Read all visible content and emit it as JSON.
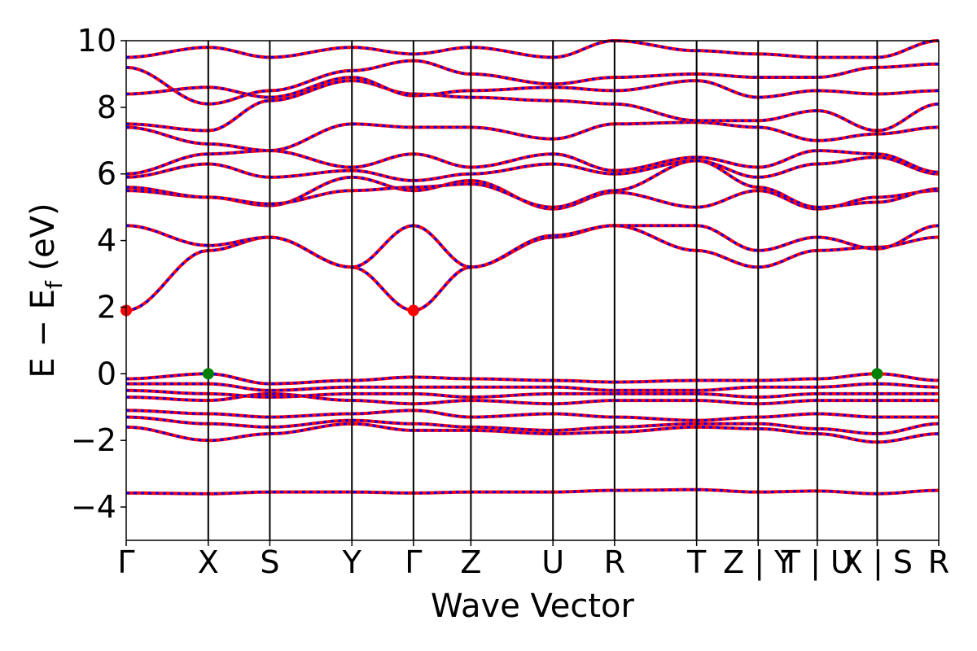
{
  "chart_data": {
    "type": "line",
    "xlabel": "Wave Vector",
    "ylabel": "E − E",
    "ylabel_subscript": "f",
    "ylabel_unit": "(eV)",
    "ylim": [
      -5,
      10
    ],
    "yticks": [
      "−4",
      "−2",
      "0",
      "2",
      "4",
      "6",
      "8",
      "10"
    ],
    "ytick_values": [
      -4,
      -2,
      0,
      2,
      4,
      6,
      8,
      10
    ],
    "kpath": [
      {
        "label": "Γ",
        "k": 0.0
      },
      {
        "label": "X",
        "k": 1.0
      },
      {
        "label": "S",
        "k": 1.75
      },
      {
        "label": "Y",
        "k": 2.75
      },
      {
        "label": "Γ",
        "k": 3.5
      },
      {
        "label": "Z",
        "k": 4.2
      },
      {
        "label": "U",
        "k": 5.2
      },
      {
        "label": "R",
        "k": 5.95
      },
      {
        "label": "T",
        "k": 6.95
      },
      {
        "label": "Z | Y",
        "k": 7.7
      },
      {
        "label": "T | U",
        "k": 8.42
      },
      {
        "label": "X | S",
        "k": 9.15
      },
      {
        "label": "R",
        "k": 9.9
      }
    ],
    "grid": false,
    "colors": {
      "spin_up": "#ff0000",
      "spin_down": "#0000ff",
      "cbm": "#ff0000",
      "vbm": "#008000"
    },
    "series": [
      {
        "values": [
          -3.58,
          -3.6,
          -3.55,
          -3.55,
          -3.58,
          -3.55,
          -3.55,
          -3.5,
          -3.48,
          -3.55,
          -3.52,
          -3.6,
          -3.5
        ]
      },
      {
        "values": [
          -1.6,
          -2.0,
          -1.8,
          -1.5,
          -1.7,
          -1.7,
          -1.8,
          -1.75,
          -1.6,
          -1.65,
          -1.8,
          -2.05,
          -1.8
        ]
      },
      {
        "values": [
          -1.3,
          -1.5,
          -1.6,
          -1.4,
          -1.5,
          -1.6,
          -1.7,
          -1.6,
          -1.5,
          -1.5,
          -1.65,
          -1.8,
          -1.5
        ]
      },
      {
        "values": [
          -1.1,
          -1.2,
          -1.3,
          -1.2,
          -1.1,
          -1.3,
          -1.2,
          -1.3,
          -1.4,
          -1.3,
          -1.2,
          -1.3,
          -1.3
        ]
      },
      {
        "values": [
          -0.7,
          -0.8,
          -0.6,
          -0.8,
          -0.9,
          -0.8,
          -0.9,
          -0.8,
          -0.8,
          -0.9,
          -0.8,
          -0.8,
          -0.8
        ]
      },
      {
        "values": [
          -0.5,
          -0.6,
          -0.7,
          -0.6,
          -0.6,
          -0.7,
          -0.6,
          -0.6,
          -0.6,
          -0.7,
          -0.6,
          -0.6,
          -0.6
        ]
      },
      {
        "values": [
          -0.3,
          -0.3,
          -0.5,
          -0.4,
          -0.4,
          -0.4,
          -0.4,
          -0.5,
          -0.5,
          -0.4,
          -0.4,
          -0.3,
          -0.4
        ]
      },
      {
        "values": [
          -0.15,
          0.0,
          -0.3,
          -0.2,
          -0.1,
          -0.15,
          -0.2,
          -0.25,
          -0.2,
          -0.2,
          -0.15,
          0.0,
          -0.2
        ]
      },
      {
        "values": [
          1.9,
          3.7,
          4.1,
          3.2,
          1.9,
          3.2,
          4.1,
          4.45,
          3.7,
          3.2,
          3.7,
          3.8,
          4.1
        ]
      },
      {
        "values": [
          4.45,
          3.85,
          4.1,
          3.2,
          4.45,
          3.2,
          4.15,
          4.45,
          4.45,
          3.7,
          4.1,
          3.75,
          4.45
        ]
      },
      {
        "values": [
          5.5,
          5.3,
          5.05,
          5.9,
          5.5,
          5.8,
          4.95,
          5.45,
          5.0,
          5.5,
          4.95,
          5.3,
          5.5
        ]
      },
      {
        "values": [
          5.6,
          5.3,
          5.1,
          5.5,
          5.6,
          5.7,
          5.0,
          5.5,
          6.4,
          5.6,
          5.0,
          5.15,
          5.55
        ]
      },
      {
        "values": [
          5.9,
          6.3,
          5.9,
          6.1,
          5.8,
          6.0,
          6.3,
          6.0,
          6.4,
          5.9,
          6.3,
          6.5,
          6.0
        ]
      },
      {
        "values": [
          6.0,
          6.6,
          6.7,
          6.2,
          6.6,
          6.2,
          6.6,
          6.1,
          6.5,
          6.2,
          6.7,
          6.6,
          6.05
        ]
      },
      {
        "values": [
          7.4,
          6.9,
          6.7,
          7.5,
          7.4,
          7.4,
          7.05,
          7.5,
          7.55,
          7.4,
          7.0,
          7.2,
          7.4
        ]
      },
      {
        "values": [
          7.5,
          7.3,
          8.2,
          8.8,
          8.4,
          8.3,
          8.2,
          8.1,
          7.6,
          7.6,
          7.9,
          7.3,
          8.1
        ]
      },
      {
        "values": [
          8.4,
          8.6,
          8.3,
          8.9,
          8.35,
          8.5,
          8.6,
          8.5,
          8.8,
          8.3,
          8.5,
          8.4,
          8.5
        ]
      },
      {
        "values": [
          9.2,
          8.1,
          8.5,
          9.1,
          9.4,
          9.0,
          8.7,
          8.9,
          9.0,
          8.9,
          8.9,
          9.2,
          9.3
        ]
      },
      {
        "values": [
          9.5,
          9.8,
          9.5,
          9.8,
          9.6,
          9.8,
          9.5,
          10.0,
          9.7,
          9.6,
          9.5,
          9.5,
          10.0
        ]
      }
    ],
    "cbm_points": [
      {
        "k": 0.0,
        "e": 1.9
      },
      {
        "k": 3.5,
        "e": 1.9
      }
    ],
    "vbm_points": [
      {
        "k": 1.0,
        "e": 0.0
      },
      {
        "k": 9.15,
        "e": 0.0
      }
    ]
  }
}
